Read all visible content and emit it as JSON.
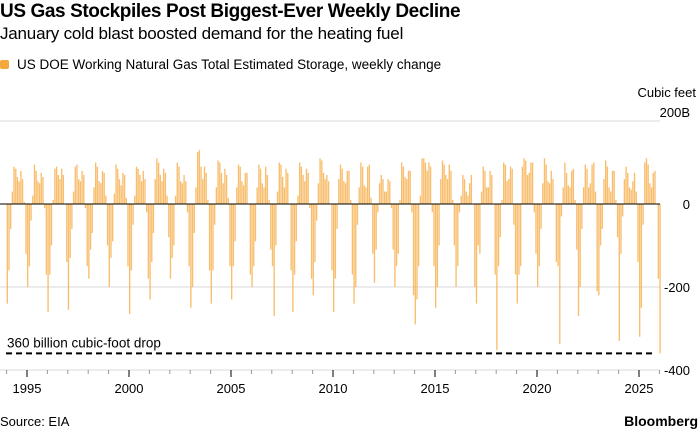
{
  "title": "US Gas Stockpiles Post Biggest-Ever Weekly Decline",
  "subtitle": "January cold blast boosted demand for the heating fuel",
  "source": "Source: EIA",
  "brand": "Bloomberg",
  "chart_data": {
    "type": "bar",
    "title": "US Gas Stockpiles Post Biggest-Ever Weekly Decline",
    "subtitle": "January cold blast boosted demand for the heating fuel",
    "unit_label": "Cubic feet",
    "ylim": [
      -400,
      200
    ],
    "y_ticks": [
      {
        "value": 200,
        "label": "200B"
      },
      {
        "value": 0,
        "label": "0"
      },
      {
        "value": -200,
        "label": "-200"
      },
      {
        "value": -400,
        "label": "-400"
      }
    ],
    "x_ticks": [
      1995,
      2000,
      2005,
      2010,
      2015,
      2020,
      2025
    ],
    "xlim": [
      1993.9,
      2026.3
    ],
    "grid": true,
    "color": "#f5a83e",
    "series": [
      {
        "name": "US DOE Working Natural Gas Total Estimated Storage, weekly change",
        "resolution": "monthly, Jan-Dec, billion cubic feet",
        "values_by_year": {
          "1994": [
            -240,
            -160,
            -60,
            30,
            90,
            85,
            65,
            55,
            80,
            60,
            5,
            -120
          ],
          "1995": [
            -200,
            -150,
            -40,
            20,
            95,
            80,
            55,
            50,
            75,
            65,
            -10,
            -170
          ],
          "1996": [
            -260,
            -170,
            -100,
            10,
            85,
            90,
            70,
            60,
            85,
            70,
            0,
            -140
          ],
          "1997": [
            -255,
            -130,
            -60,
            30,
            90,
            95,
            60,
            55,
            80,
            70,
            -10,
            -150
          ],
          "1998": [
            -180,
            -110,
            -70,
            40,
            100,
            90,
            55,
            50,
            80,
            75,
            20,
            -100
          ],
          "1999": [
            -200,
            -130,
            -90,
            25,
            95,
            85,
            60,
            45,
            75,
            70,
            15,
            -150
          ],
          "2000": [
            -265,
            -160,
            -50,
            20,
            90,
            85,
            70,
            55,
            80,
            60,
            -20,
            -180
          ],
          "2001": [
            -230,
            -140,
            -70,
            60,
            110,
            100,
            70,
            55,
            85,
            75,
            20,
            -80
          ],
          "2002": [
            -180,
            -130,
            -100,
            20,
            100,
            90,
            55,
            50,
            70,
            55,
            -20,
            -150
          ],
          "2003": [
            -250,
            -200,
            -70,
            40,
            125,
            130,
            90,
            60,
            90,
            75,
            10,
            -160
          ],
          "2004": [
            -240,
            -160,
            -50,
            40,
            105,
            100,
            75,
            50,
            85,
            70,
            15,
            -150
          ],
          "2005": [
            -230,
            -150,
            -90,
            40,
            95,
            90,
            55,
            45,
            75,
            75,
            0,
            -170
          ],
          "2006": [
            -200,
            -150,
            -90,
            40,
            95,
            85,
            50,
            40,
            90,
            70,
            10,
            -110
          ],
          "2007": [
            -150,
            -270,
            -100,
            30,
            100,
            95,
            65,
            40,
            85,
            75,
            0,
            -160
          ],
          "2008": [
            -260,
            -170,
            -90,
            20,
            100,
            90,
            70,
            55,
            85,
            75,
            -10,
            -180
          ],
          "2009": [
            -220,
            -140,
            -40,
            50,
            110,
            105,
            75,
            60,
            70,
            55,
            0,
            -160
          ],
          "2010": [
            -260,
            -180,
            -60,
            60,
            95,
            85,
            55,
            50,
            80,
            80,
            10,
            -170
          ],
          "2011": [
            -240,
            -200,
            -50,
            40,
            100,
            90,
            45,
            40,
            90,
            95,
            15,
            -120
          ],
          "2012": [
            -190,
            -110,
            -20,
            50,
            70,
            60,
            30,
            30,
            60,
            55,
            -10,
            -110
          ],
          "2013": [
            -200,
            -150,
            -120,
            10,
            100,
            90,
            65,
            60,
            80,
            80,
            -20,
            -220
          ],
          "2014": [
            -290,
            -230,
            -150,
            20,
            110,
            110,
            100,
            80,
            100,
            90,
            -20,
            -150
          ],
          "2015": [
            -250,
            -200,
            -100,
            60,
            105,
            95,
            70,
            60,
            95,
            80,
            10,
            -100
          ],
          "2016": [
            -200,
            -150,
            -20,
            20,
            70,
            60,
            30,
            20,
            50,
            70,
            0,
            -200
          ],
          "2017": [
            -240,
            -100,
            -120,
            30,
            90,
            80,
            40,
            40,
            80,
            70,
            0,
            -170
          ],
          "2018": [
            -352,
            -150,
            -80,
            10,
            100,
            95,
            55,
            60,
            90,
            85,
            -50,
            -170
          ],
          "2019": [
            -240,
            -170,
            -150,
            90,
            110,
            105,
            70,
            75,
            100,
            100,
            -20,
            -120
          ],
          "2020": [
            -200,
            -150,
            -60,
            50,
            110,
            95,
            55,
            50,
            80,
            60,
            0,
            -140
          ],
          "2021": [
            -150,
            -338,
            -30,
            40,
            100,
            75,
            45,
            40,
            80,
            85,
            10,
            -110
          ],
          "2022": [
            -270,
            -200,
            -60,
            40,
            95,
            85,
            40,
            50,
            95,
            100,
            30,
            -210
          ],
          "2023": [
            -220,
            -100,
            -60,
            60,
            105,
            90,
            40,
            30,
            80,
            80,
            10,
            -80
          ],
          "2024": [
            -330,
            -120,
            -30,
            60,
            90,
            75,
            40,
            35,
            55,
            75,
            30,
            -140
          ],
          "2025": [
            -320,
            -250,
            -50,
            100,
            110,
            95,
            50,
            40,
            75,
            80,
            0,
            -180
          ],
          "2026": [
            -360
          ]
        }
      }
    ],
    "annotations": [
      {
        "type": "hline",
        "value": -360,
        "style": "dashed",
        "label": "360 billion cubic-foot drop"
      }
    ],
    "legend": "top-left"
  }
}
